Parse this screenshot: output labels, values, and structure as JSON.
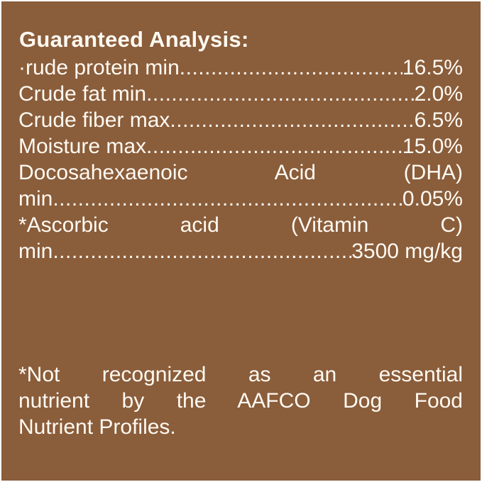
{
  "title": "Guaranteed Analysis:",
  "rows": [
    {
      "label": "·rude protein min",
      "dots": "....................................................",
      "value": "16.5%"
    },
    {
      "label": "Crude fat min",
      "dots": "....................................................",
      "value": "2.0%"
    },
    {
      "label": "Crude fiber max",
      "dots": "....................................................",
      "value": "6.5%"
    },
    {
      "label": "Moisture max",
      "dots": "....................................................",
      "value": "15.0%"
    }
  ],
  "dha": {
    "line1": "Docosahexaenoic Acid (DHA)",
    "label": "min",
    "dots": "..........................................................",
    "value": "0.05%"
  },
  "vitc": {
    "line1": "*Ascorbic acid (Vitamin C)",
    "label": "min",
    "dots": "..........................................................",
    "value": "3500 mg/kg"
  },
  "footnote": [
    "*Not recognized as an essential",
    "nutrient by the AAFCO Dog Food",
    "Nutrient Profiles."
  ],
  "colors": {
    "background": "#8a5d3b",
    "text": "#fffaf2"
  }
}
